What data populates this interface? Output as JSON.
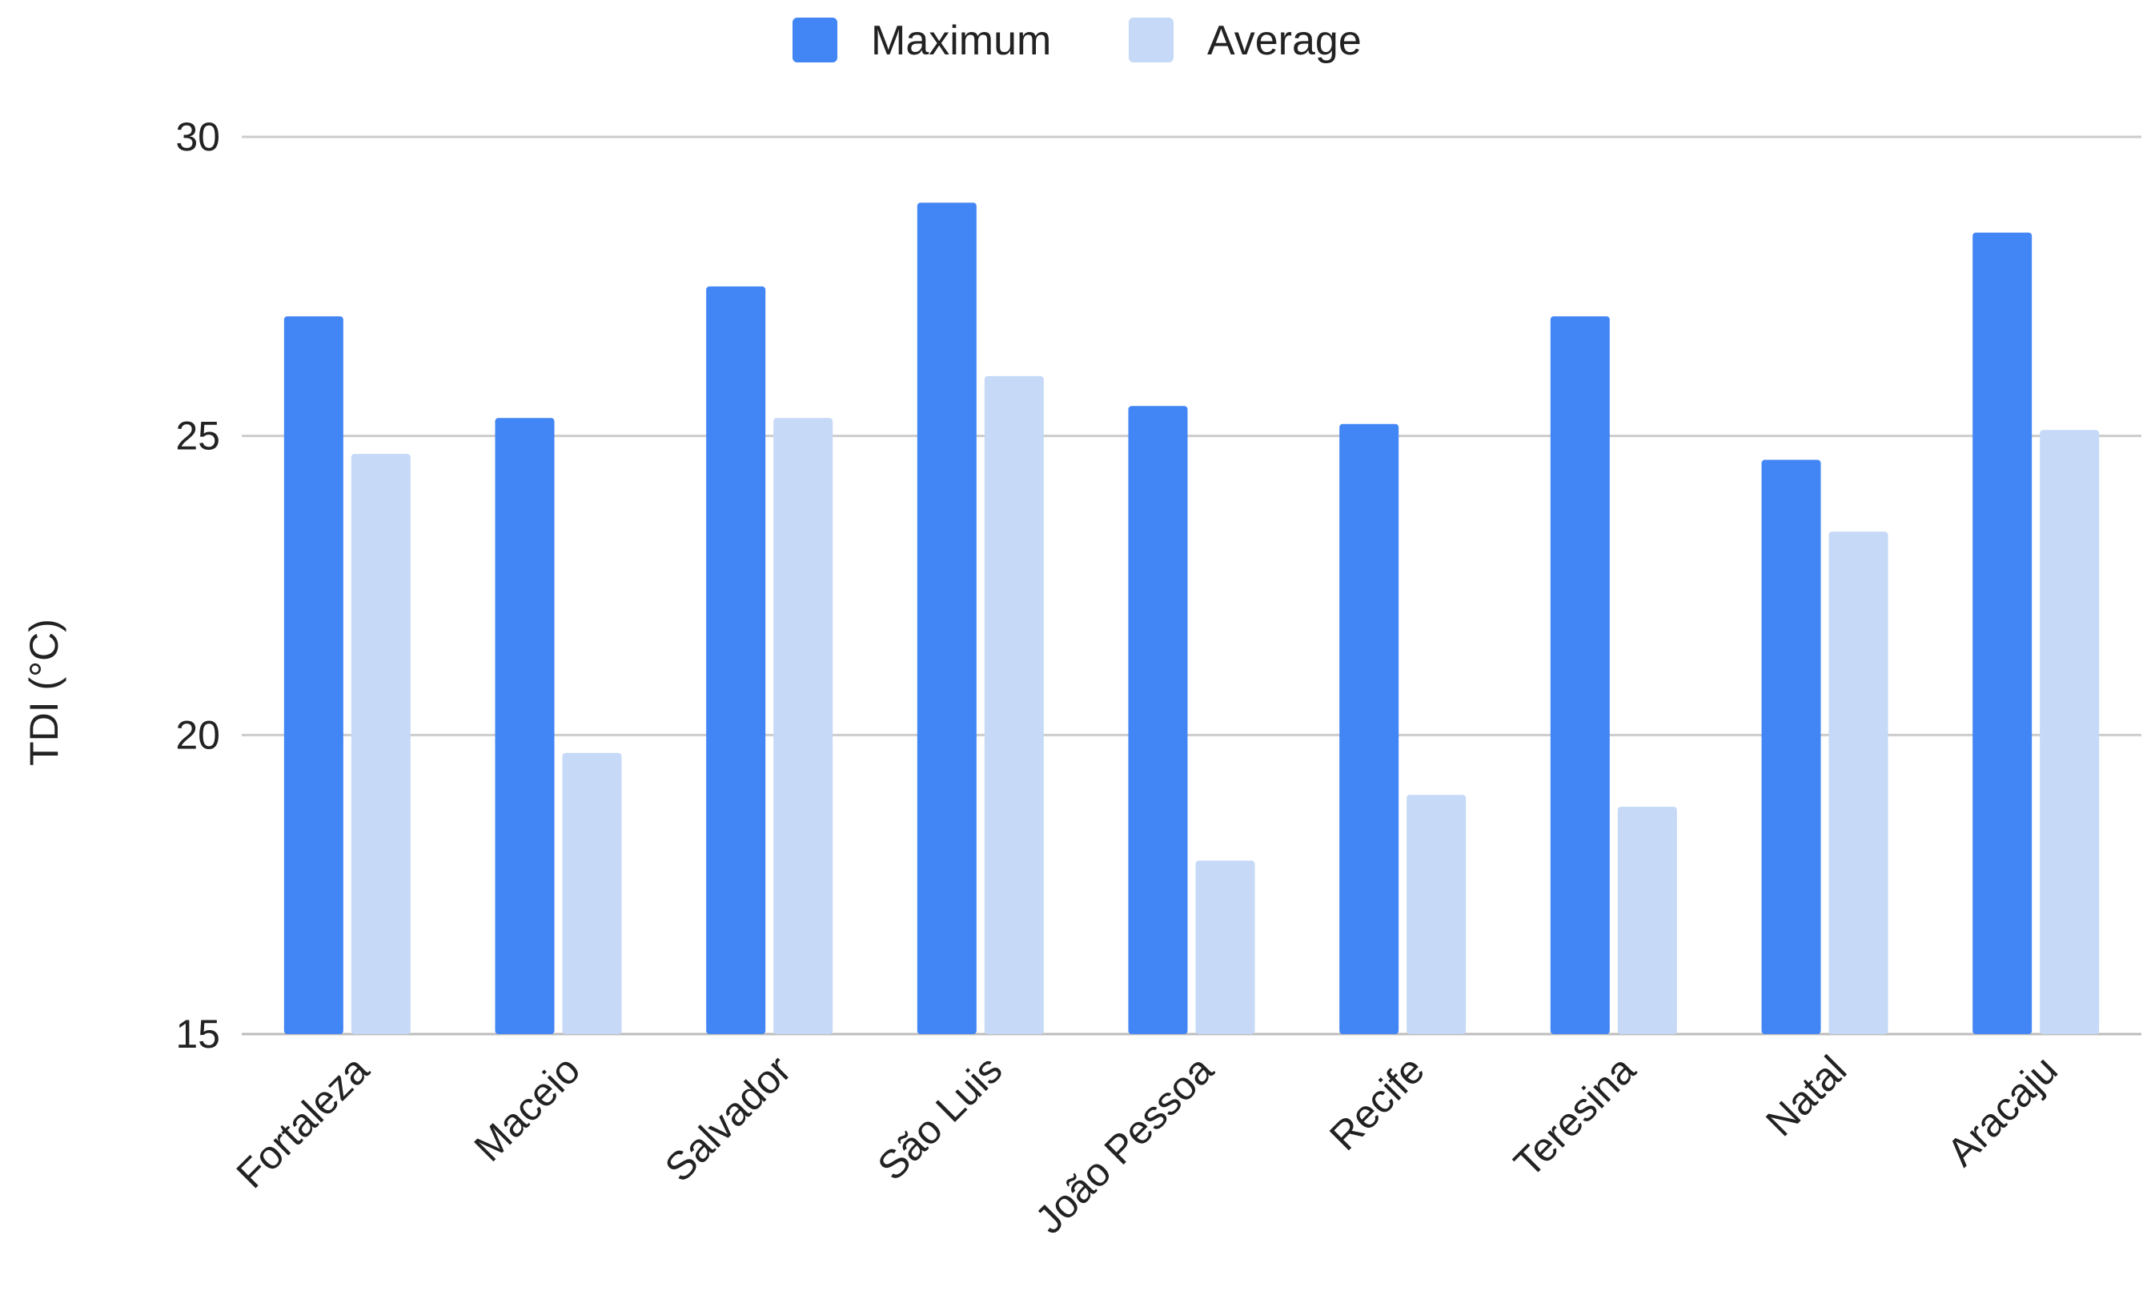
{
  "chart_data": {
    "type": "bar",
    "title": "",
    "xlabel": "",
    "ylabel": "TDI (°C)",
    "ylim": [
      15,
      30
    ],
    "yticks": [
      15,
      20,
      25,
      30
    ],
    "grid": true,
    "legend_position": "top-center",
    "categories": [
      "Fortaleza",
      "Maceio",
      "Salvador",
      "São Luis",
      "João Pessoa",
      "Recife",
      "Teresina",
      "Natal",
      "Aracaju"
    ],
    "series": [
      {
        "name": "Maximum",
        "color": "#4285f4",
        "values": [
          27.0,
          25.3,
          27.5,
          28.9,
          25.5,
          25.2,
          27.0,
          24.6,
          28.4
        ]
      },
      {
        "name": "Average",
        "color": "#c6d9f7",
        "values": [
          24.7,
          19.7,
          25.3,
          26.0,
          17.9,
          19.0,
          18.8,
          23.4,
          25.1
        ]
      }
    ]
  }
}
